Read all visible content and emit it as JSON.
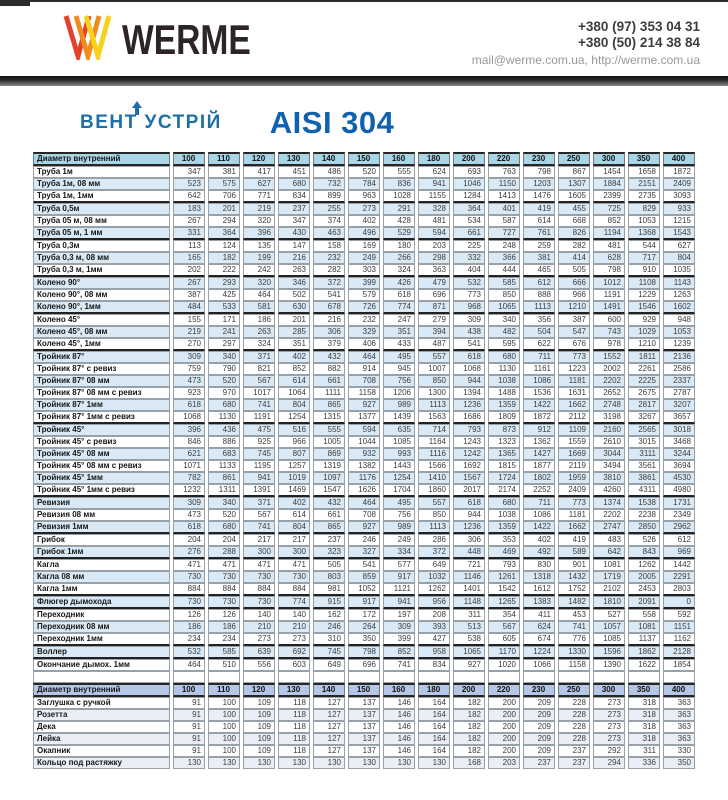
{
  "header": {
    "brand": "WERME",
    "phone1": "+380 (97) 353 04 31",
    "phone2": "+380 (50) 214 38 84",
    "email_site": "mail@werme.com.ua, http://werme.com.ua"
  },
  "subheader": {
    "logo_text": "ВЕНТ УСТРІЙ",
    "title": "AISI 304"
  },
  "colors": {
    "logo_red": "#e2422b",
    "logo_orange": "#f08c1e",
    "logo_yellow": "#f7d21c",
    "vent_blue": "#1d6fa6",
    "aisi_blue": "#1061ae",
    "table1_header_bg": "#a9d6e6",
    "table2_header_bg": "#b4c7e7",
    "stripe_blue": "#d9eaf6"
  },
  "tables": [
    {
      "header_label": "Диаметр внутренний",
      "diameters": [
        "100",
        "110",
        "120",
        "130",
        "140",
        "150",
        "160",
        "180",
        "200",
        "220",
        "230",
        "250",
        "300",
        "350",
        "400"
      ],
      "trailing_empty_row": true,
      "rows": [
        {
          "label": "Труба 1м",
          "values": [
            347,
            381,
            417,
            451,
            486,
            520,
            555,
            624,
            693,
            763,
            798,
            867,
            1454,
            1658,
            1872
          ],
          "group_end": false
        },
        {
          "label": "Труба 1м, 08 мм",
          "values": [
            523,
            575,
            627,
            680,
            732,
            784,
            836,
            941,
            1046,
            1150,
            1203,
            1307,
            1884,
            2151,
            2409
          ],
          "group_end": false
        },
        {
          "label": "Труба 1м, 1мм",
          "values": [
            642,
            706,
            771,
            834,
            899,
            963,
            1028,
            1155,
            1284,
            1413,
            1476,
            1605,
            2399,
            2735,
            3093
          ],
          "group_end": true
        },
        {
          "label": "Труба 0,5м",
          "values": [
            183,
            201,
            219,
            237,
            255,
            273,
            291,
            328,
            364,
            401,
            419,
            455,
            725,
            829,
            933
          ],
          "group_end": false
        },
        {
          "label": "Труба 05 м, 08 мм",
          "values": [
            267,
            294,
            320,
            347,
            374,
            402,
            428,
            481,
            534,
            587,
            614,
            668,
            852,
            1053,
            1215
          ],
          "group_end": false
        },
        {
          "label": "Труба 05 м, 1 мм",
          "values": [
            331,
            364,
            396,
            430,
            463,
            496,
            529,
            594,
            661,
            727,
            761,
            826,
            1194,
            1368,
            1543
          ],
          "group_end": true
        },
        {
          "label": "Труба 0,3м",
          "values": [
            113,
            124,
            135,
            147,
            158,
            169,
            180,
            203,
            225,
            248,
            259,
            282,
            481,
            544,
            627
          ],
          "group_end": false
        },
        {
          "label": "Труба 0,3 м, 08 мм",
          "values": [
            165,
            182,
            199,
            216,
            232,
            249,
            266,
            298,
            332,
            366,
            381,
            414,
            628,
            717,
            804
          ],
          "group_end": false
        },
        {
          "label": "Труба 0,3 м, 1мм",
          "values": [
            202,
            222,
            242,
            263,
            282,
            303,
            324,
            363,
            404,
            444,
            465,
            505,
            798,
            910,
            1035
          ],
          "group_end": true
        },
        {
          "label": "Колено 90°",
          "values": [
            267,
            293,
            320,
            346,
            372,
            399,
            426,
            479,
            532,
            585,
            612,
            666,
            1012,
            1108,
            1143
          ],
          "group_end": false
        },
        {
          "label": "Колено 90°, 08 мм",
          "values": [
            387,
            425,
            464,
            502,
            541,
            579,
            618,
            696,
            773,
            850,
            888,
            966,
            1191,
            1229,
            1263
          ],
          "group_end": false
        },
        {
          "label": "Колено 90°, 1мм",
          "values": [
            484,
            533,
            581,
            630,
            678,
            726,
            774,
            871,
            968,
            1065,
            1113,
            1210,
            1491,
            1546,
            1602
          ],
          "group_end": true
        },
        {
          "label": "Колено 45°",
          "values": [
            155,
            171,
            186,
            201,
            216,
            232,
            247,
            279,
            309,
            340,
            356,
            387,
            600,
            929,
            948
          ],
          "group_end": false
        },
        {
          "label": "Колено 45°, 08 мм",
          "values": [
            219,
            241,
            263,
            285,
            306,
            329,
            351,
            394,
            438,
            482,
            504,
            547,
            743,
            1029,
            1053
          ],
          "group_end": false
        },
        {
          "label": "Колено 45°, 1мм",
          "values": [
            270,
            297,
            324,
            351,
            379,
            406,
            433,
            487,
            541,
            595,
            622,
            676,
            978,
            1210,
            1239
          ],
          "group_end": true
        },
        {
          "label": "Тройник 87°",
          "values": [
            309,
            340,
            371,
            402,
            432,
            464,
            495,
            557,
            618,
            680,
            711,
            773,
            1552,
            1811,
            2136
          ],
          "group_end": false
        },
        {
          "label": "Тройник 87° с ревиз",
          "values": [
            759,
            790,
            821,
            852,
            882,
            914,
            945,
            1007,
            1068,
            1130,
            1161,
            1223,
            2002,
            2261,
            2586
          ],
          "group_end": false
        },
        {
          "label": "Тройник 87° 08 мм",
          "values": [
            473,
            520,
            567,
            614,
            661,
            708,
            756,
            850,
            944,
            1038,
            1086,
            1181,
            2202,
            2225,
            2337
          ],
          "group_end": false
        },
        {
          "label": "Тройник 87° 08 мм с ревиз",
          "values": [
            923,
            970,
            1017,
            1064,
            1111,
            1158,
            1206,
            1300,
            1394,
            1488,
            1536,
            1631,
            2652,
            2675,
            2787
          ],
          "group_end": false
        },
        {
          "label": "Тройник 87° 1мм",
          "values": [
            618,
            680,
            741,
            804,
            865,
            927,
            989,
            1113,
            1236,
            1359,
            1422,
            1662,
            2748,
            2817,
            3207
          ],
          "group_end": false
        },
        {
          "label": "Тройник 87° 1мм с ревиз",
          "values": [
            1068,
            1130,
            1191,
            1254,
            1315,
            1377,
            1439,
            1563,
            1686,
            1809,
            1872,
            2112,
            3198,
            3267,
            3657
          ],
          "group_end": true
        },
        {
          "label": "Тройник 45°",
          "values": [
            396,
            436,
            475,
            516,
            555,
            594,
            635,
            714,
            793,
            873,
            912,
            1109,
            2160,
            2565,
            3018
          ],
          "group_end": false
        },
        {
          "label": "Тройник 45° с ревиз",
          "values": [
            846,
            886,
            925,
            966,
            1005,
            1044,
            1085,
            1164,
            1243,
            1323,
            1362,
            1559,
            2610,
            3015,
            3468
          ],
          "group_end": false
        },
        {
          "label": "Тройник 45° 08 мм",
          "values": [
            621,
            683,
            745,
            807,
            869,
            932,
            993,
            1116,
            1242,
            1365,
            1427,
            1669,
            3044,
            3111,
            3244
          ],
          "group_end": false
        },
        {
          "label": "Тройник 45° 08 мм с ревиз",
          "values": [
            1071,
            1133,
            1195,
            1257,
            1319,
            1382,
            1443,
            1566,
            1692,
            1815,
            1877,
            2119,
            3494,
            3561,
            3694
          ],
          "group_end": false
        },
        {
          "label": "Тройник 45° 1мм",
          "values": [
            782,
            861,
            941,
            1019,
            1097,
            1176,
            1254,
            1410,
            1567,
            1724,
            1802,
            1959,
            3810,
            3861,
            4530
          ],
          "group_end": false
        },
        {
          "label": "Тройник 45° 1мм с ревиз",
          "values": [
            1232,
            1311,
            1391,
            1469,
            1547,
            1626,
            1704,
            1860,
            2017,
            2174,
            2252,
            2409,
            4260,
            4311,
            4980
          ],
          "group_end": true
        },
        {
          "label": "Ревизия",
          "values": [
            309,
            340,
            371,
            402,
            432,
            464,
            495,
            557,
            618,
            680,
            711,
            773,
            1374,
            1538,
            1731
          ],
          "group_end": false
        },
        {
          "label": "Ревизия 08 мм",
          "values": [
            473,
            520,
            567,
            614,
            661,
            708,
            756,
            850,
            944,
            1038,
            1086,
            1181,
            2202,
            2238,
            2349
          ],
          "group_end": false
        },
        {
          "label": "Ревизия 1мм",
          "values": [
            618,
            680,
            741,
            804,
            865,
            927,
            989,
            1113,
            1236,
            1359,
            1422,
            1662,
            2747,
            2850,
            2962
          ],
          "group_end": true
        },
        {
          "label": "Грибок",
          "values": [
            204,
            204,
            217,
            217,
            237,
            246,
            249,
            286,
            306,
            353,
            402,
            419,
            483,
            526,
            612
          ],
          "group_end": false
        },
        {
          "label": "Грибок 1мм",
          "values": [
            276,
            288,
            300,
            300,
            323,
            327,
            334,
            372,
            448,
            469,
            492,
            589,
            642,
            843,
            969
          ],
          "group_end": true
        },
        {
          "label": "Кагла",
          "values": [
            471,
            471,
            471,
            471,
            505,
            541,
            577,
            649,
            721,
            793,
            830,
            901,
            1081,
            1262,
            1442
          ],
          "group_end": false
        },
        {
          "label": "Кагла 08 мм",
          "values": [
            730,
            730,
            730,
            730,
            803,
            859,
            917,
            1032,
            1146,
            1261,
            1318,
            1432,
            1719,
            2005,
            2291
          ],
          "group_end": false
        },
        {
          "label": "Кагла 1мм",
          "values": [
            884,
            884,
            884,
            884,
            981,
            1052,
            1121,
            1262,
            1401,
            1542,
            1612,
            1752,
            2102,
            2453,
            2803
          ],
          "group_end": true
        },
        {
          "label": "Флюгер дымохода",
          "values": [
            730,
            730,
            730,
            774,
            915,
            917,
            941,
            956,
            1148,
            1265,
            1383,
            1482,
            1810,
            2091,
            0
          ],
          "group_end": true
        },
        {
          "label": "Переходник",
          "values": [
            126,
            126,
            140,
            140,
            162,
            172,
            197,
            208,
            311,
            354,
            411,
            453,
            527,
            558,
            592
          ],
          "group_end": false
        },
        {
          "label": "Переходник 08 мм",
          "values": [
            186,
            186,
            210,
            210,
            246,
            264,
            309,
            393,
            513,
            567,
            624,
            741,
            1057,
            1081,
            1151
          ],
          "group_end": false
        },
        {
          "label": "Переходник 1мм",
          "values": [
            234,
            234,
            273,
            273,
            310,
            350,
            399,
            427,
            538,
            605,
            674,
            776,
            1085,
            1137,
            1162
          ],
          "group_end": true
        },
        {
          "label": "Воллер",
          "values": [
            532,
            585,
            639,
            692,
            745,
            798,
            852,
            958,
            1065,
            1170,
            1224,
            1330,
            1596,
            1862,
            2128
          ],
          "group_end": true
        },
        {
          "label": "Окончание дымох. 1мм",
          "values": [
            464,
            510,
            556,
            603,
            649,
            696,
            741,
            834,
            927,
            1020,
            1066,
            1158,
            1390,
            1622,
            1854
          ],
          "group_end": false
        }
      ]
    },
    {
      "header_label": "Диаметр внутренний",
      "diameters": [
        "100",
        "110",
        "120",
        "130",
        "140",
        "150",
        "160",
        "180",
        "200",
        "220",
        "230",
        "250",
        "300",
        "350",
        "400"
      ],
      "trailing_empty_row": false,
      "rows": [
        {
          "label": "Заглушка с ручкой",
          "values": [
            91,
            100,
            109,
            118,
            127,
            137,
            146,
            164,
            182,
            200,
            209,
            228,
            273,
            318,
            363
          ],
          "group_end": false
        },
        {
          "label": "Розетта",
          "values": [
            91,
            100,
            109,
            118,
            127,
            137,
            146,
            164,
            182,
            200,
            209,
            228,
            273,
            318,
            363
          ],
          "group_end": false
        },
        {
          "label": "Дека",
          "values": [
            91,
            100,
            109,
            118,
            127,
            137,
            146,
            164,
            182,
            200,
            209,
            228,
            273,
            318,
            363
          ],
          "group_end": false
        },
        {
          "label": "Лейка",
          "values": [
            91,
            100,
            109,
            118,
            127,
            137,
            146,
            164,
            182,
            200,
            209,
            228,
            273,
            318,
            363
          ],
          "group_end": false
        },
        {
          "label": "Окапник",
          "values": [
            91,
            100,
            109,
            118,
            127,
            137,
            146,
            164,
            182,
            200,
            209,
            237,
            292,
            311,
            330
          ],
          "group_end": false
        },
        {
          "label": "Кольцо под растяжку",
          "values": [
            130,
            130,
            130,
            130,
            130,
            130,
            130,
            130,
            168,
            203,
            237,
            237,
            294,
            336,
            350
          ],
          "group_end": false
        }
      ]
    }
  ]
}
